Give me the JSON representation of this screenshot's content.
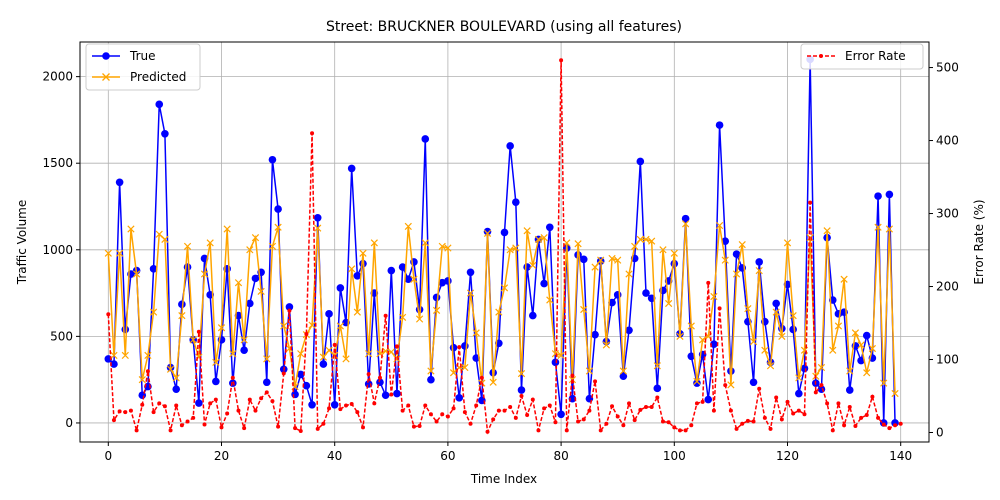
{
  "chart_data": {
    "type": "line",
    "title": "Street: BRUCKNER BOULEVARD (using all features)",
    "xlabel": "Time Index",
    "ylabel": "Traffic Volume",
    "y2label": "Error Rate (%)",
    "xlim": [
      -5,
      145
    ],
    "ylim": [
      -110,
      2200
    ],
    "y2lim": [
      -13,
      535
    ],
    "xticks": [
      0,
      20,
      40,
      60,
      80,
      100,
      120,
      140
    ],
    "yticks": [
      0,
      500,
      1000,
      1500,
      2000
    ],
    "y2ticks": [
      0,
      100,
      200,
      300,
      400,
      500
    ],
    "grid": true,
    "legend_left": "upper left",
    "legend_right": "upper right",
    "colors": {
      "true": "#0000ff",
      "predicted": "#ffa500",
      "error": "#ff0000"
    },
    "series": [
      {
        "name": "True",
        "axis": "left",
        "marker": "circle",
        "values": [
          370,
          340,
          1390,
          540,
          860,
          880,
          160,
          210,
          890,
          1840,
          1670,
          320,
          195,
          685,
          900,
          480,
          115,
          950,
          740,
          240,
          480,
          890,
          230,
          620,
          420,
          690,
          835,
          870,
          235,
          1520,
          1235,
          310,
          670,
          165,
          280,
          215,
          105,
          1185,
          340,
          630,
          105,
          780,
          580,
          1470,
          850,
          920,
          225,
          750,
          235,
          160,
          880,
          170,
          900,
          830,
          930,
          655,
          1640,
          250,
          725,
          810,
          820,
          435,
          145,
          445,
          870,
          375,
          130,
          1105,
          290,
          460,
          1100,
          1600,
          1275,
          190,
          900,
          620,
          1060,
          805,
          1130,
          350,
          50,
          1010,
          140,
          970,
          945,
          140,
          510,
          935,
          470,
          695,
          740,
          270,
          535,
          950,
          1510,
          750,
          720,
          200,
          765,
          820,
          920,
          515,
          1180,
          385,
          230,
          395,
          135,
          455,
          1720,
          1050,
          300,
          975,
          895,
          585,
          235,
          930,
          585,
          350,
          690,
          545,
          800,
          540,
          170,
          315,
          2100,
          230,
          195,
          1070,
          710,
          630,
          640,
          190,
          445,
          360,
          505,
          375,
          1310,
          0,
          1320,
          0
        ]
      },
      {
        "name": "Predicted",
        "axis": "left",
        "marker": "x",
        "values": [
          980,
          390,
          980,
          390,
          1120,
          860,
          250,
          390,
          640,
          1090,
          1060,
          310,
          260,
          620,
          1020,
          480,
          380,
          860,
          1040,
          350,
          550,
          1120,
          400,
          810,
          480,
          1000,
          1070,
          760,
          370,
          1020,
          1130,
          560,
          430,
          210,
          400,
          510,
          565,
          1125,
          380,
          420,
          390,
          560,
          370,
          890,
          640,
          980,
          400,
          1040,
          400,
          415,
          410,
          370,
          610,
          1135,
          830,
          600,
          1040,
          300,
          650,
          1020,
          1010,
          290,
          320,
          320,
          750,
          520,
          230,
          1095,
          235,
          640,
          780,
          1000,
          1010,
          285,
          1110,
          910,
          1060,
          1070,
          710,
          400,
          390,
          1040,
          250,
          1035,
          655,
          300,
          900,
          940,
          450,
          950,
          940,
          300,
          860,
          1020,
          1060,
          1060,
          1050,
          330,
          1000,
          690,
          980,
          500,
          1150,
          560,
          240,
          480,
          500,
          730,
          1140,
          940,
          220,
          860,
          1030,
          660,
          470,
          880,
          420,
          330,
          640,
          500,
          1040,
          620,
          260,
          420,
          1070,
          270,
          320,
          1110,
          420,
          560,
          830,
          300,
          520,
          450,
          290,
          430,
          1130,
          230,
          1120,
          170
        ]
      },
      {
        "name": "Error Rate",
        "axis": "right",
        "marker": "dot",
        "values": [
          162,
          17,
          29,
          28,
          30,
          3,
          38,
          84,
          28,
          40,
          36,
          3,
          37,
          10,
          15,
          20,
          138,
          11,
          40,
          45,
          7,
          26,
          75,
          30,
          6,
          45,
          30,
          47,
          55,
          43,
          8,
          81,
          167,
          6,
          2,
          135,
          410,
          5,
          12,
          33,
          120,
          32,
          37,
          39,
          28,
          7,
          80,
          40,
          75,
          160,
          52,
          118,
          30,
          37,
          8,
          9,
          37,
          25,
          15,
          25,
          22,
          33,
          117,
          28,
          12,
          37,
          75,
          1,
          18,
          30,
          30,
          35,
          20,
          50,
          24,
          45,
          3,
          33,
          37,
          14,
          510,
          3,
          78,
          15,
          18,
          30,
          70,
          3,
          12,
          36,
          22,
          10,
          40,
          17,
          31,
          35,
          35,
          48,
          15,
          14,
          7,
          3,
          3,
          10,
          40,
          42,
          205,
          30,
          170,
          65,
          30,
          5,
          12,
          16,
          15,
          60,
          20,
          5,
          48,
          18,
          42,
          26,
          30,
          25,
          315,
          55,
          65,
          40,
          3,
          40,
          10,
          35,
          9,
          20,
          24,
          49,
          20,
          11,
          6,
          10,
          12
        ]
      }
    ]
  }
}
